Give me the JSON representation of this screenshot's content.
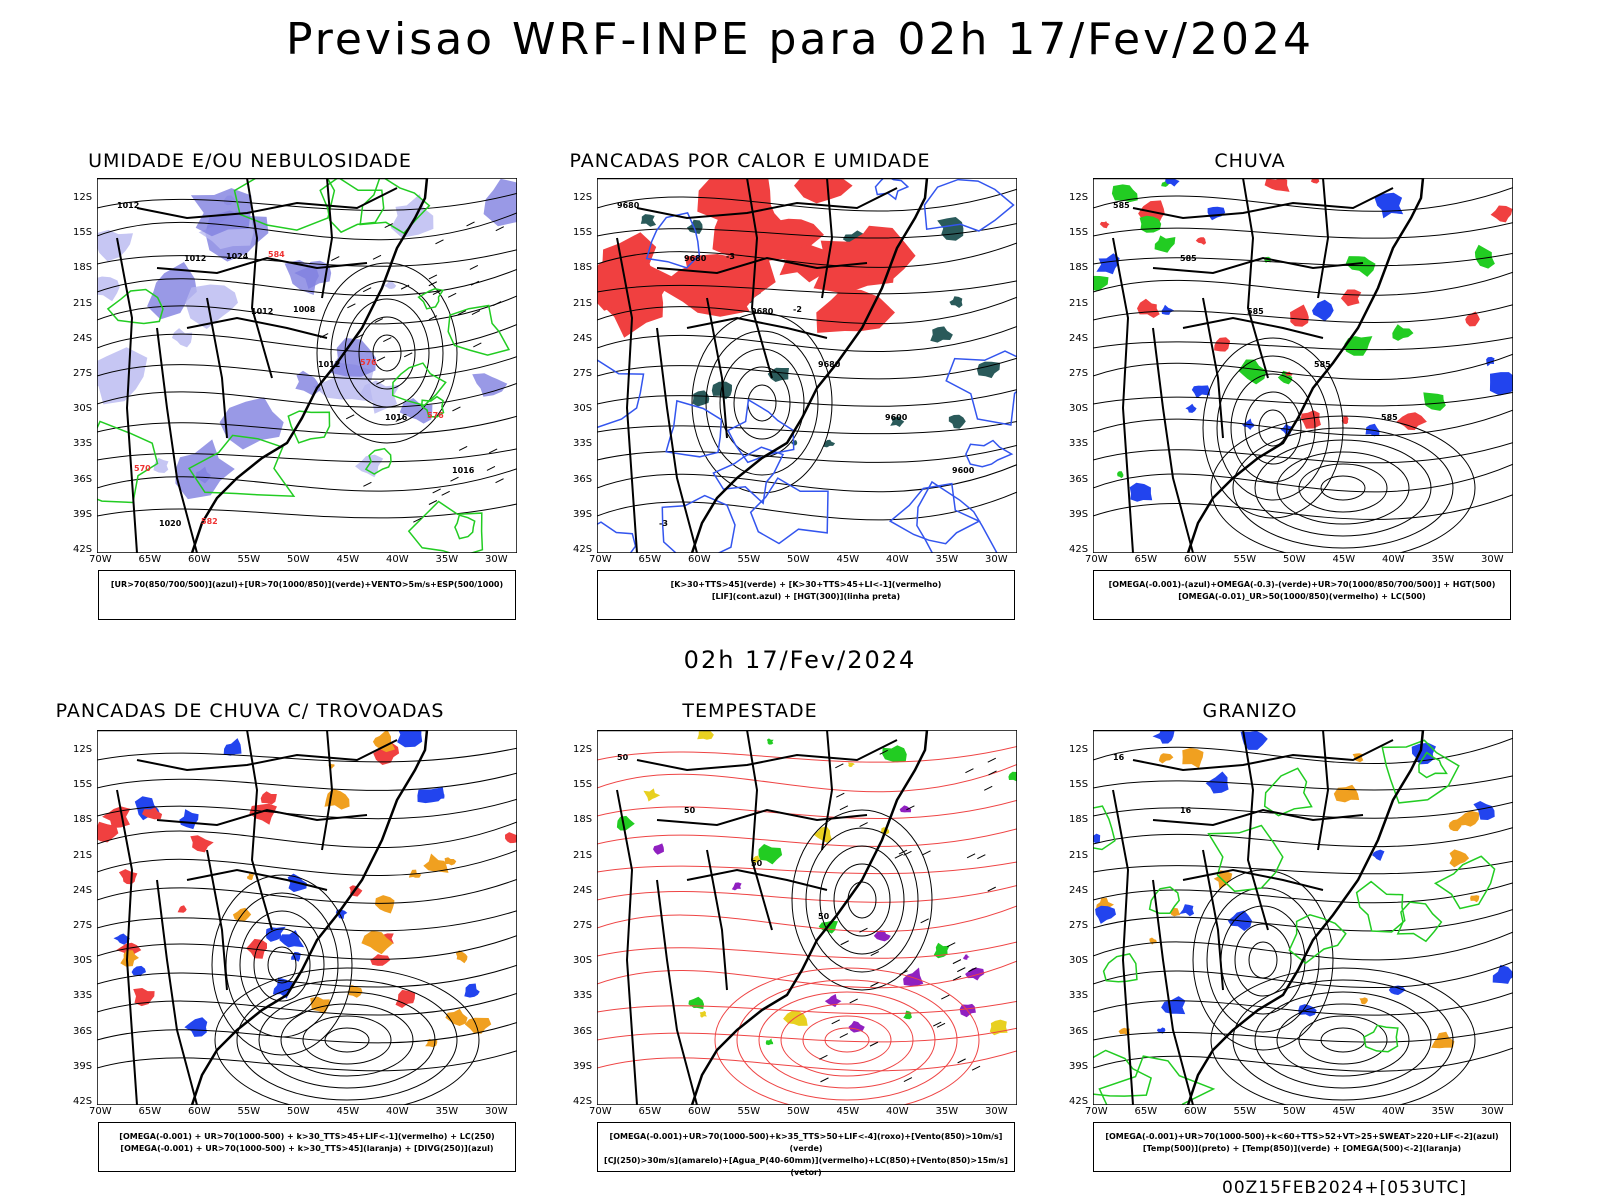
{
  "title": "Previsao WRF-INPE  para 02h 17/Fev/2024",
  "subtitle": "02h 17/Fev/2024",
  "footer": "00Z15FEB2024+[053UTC]",
  "axes": {
    "lat_labels": [
      "12S",
      "15S",
      "18S",
      "21S",
      "24S",
      "27S",
      "30S",
      "33S",
      "36S",
      "39S",
      "42S"
    ],
    "lon_labels": [
      "70W",
      "65W",
      "60W",
      "55W",
      "50W",
      "45W",
      "40W",
      "35W",
      "30W"
    ]
  },
  "panels": [
    {
      "title": "UMIDADE E/OU NEBULOSIDADE",
      "legend": [
        "[UR>70(850/700/500)](azul)+[UR>70(1000/850)](verde)+VENTO>5m/s+ESP(500/1000)"
      ],
      "contour_labels": [
        "1012",
        "1012",
        "1012",
        "1012",
        "1016",
        "1016",
        "1020",
        "1024",
        "1008",
        "576",
        "576",
        "570",
        "582",
        "584"
      ],
      "colors": {
        "shade1": "#b8b8f0",
        "shade2": "#8080e0",
        "contour": "#22cc22",
        "thickness": "#ee3333",
        "isobar": "#000000"
      }
    },
    {
      "title": "PANCADAS POR CALOR E UMIDADE",
      "legend": [
        "[K>30+TTS>45](verde) + [K>30+TTS>45+LI<-1](vermelho)",
        "[LIF](cont.azul) + [HGT(300)](linha preta)"
      ],
      "contour_labels": [
        "9680",
        "9680",
        "9680",
        "9680",
        "9600",
        "9600",
        "-3",
        "-3",
        "-2"
      ],
      "colors": {
        "shade1": "#f04040",
        "shade2": "#2a5a5a",
        "contour": "#3355ee",
        "isobar": "#000000"
      }
    },
    {
      "title": "CHUVA",
      "legend": [
        "[OMEGA(-0.001)-(azul)+OMEGA(-0.3)-(verde)+UR>70(1000/850/700/500)] + HGT(500)",
        "[OMEGA(-0.01)_UR>50(1000/850)(vermelho) + LC(500)"
      ],
      "contour_labels": [
        "585",
        "585",
        "585",
        "585",
        "585"
      ],
      "colors": {
        "shade1": "#f04040",
        "shade2": "#2244ee",
        "shade3": "#22cc22",
        "isobar": "#000000"
      }
    },
    {
      "title": "PANCADAS DE CHUVA C/ TROVOADAS",
      "legend": [
        "[OMEGA(-0.001) + UR>70(1000-500) + k>30_TTS>45+LIF<-1](vermelho) + LC(250)",
        "[OMEGA(-0.001) + UR>70(1000-500) + k>30_TTS>45](laranja) + [DIVG(250)](azul)"
      ],
      "contour_labels": [],
      "colors": {
        "shade1": "#f04040",
        "shade2": "#f0a020",
        "shade3": "#2244ee",
        "isobar": "#000000"
      }
    },
    {
      "title": "TEMPESTADE",
      "legend": [
        "[OMEGA(-0.001)+UR>70(1000-500)+k>35_TTS>50+LIF<-4](roxo)+[Vento(850)>10m/s](verde)",
        "[CJ(250)>30m/s](amarelo)+[Agua_P(40-60mm)](vermelho)+LC(850)+[Vento(850)>15m/s](vetor)"
      ],
      "contour_labels": [
        "50",
        "50",
        "50",
        "50"
      ],
      "colors": {
        "shade1": "#e8d020",
        "shade2": "#9020c0",
        "shade3": "#22cc22",
        "contour": "#ee4444",
        "isobar": "#000000"
      }
    },
    {
      "title": "GRANIZO",
      "legend": [
        "[OMEGA(-0.001)+UR>70(1000-500)+k<60+TTS>52+VT>25+SWEAT>220+LIF<-2](azul)",
        "[Temp(500)](preto) + [Temp(850)](verde) + [OMEGA(500)<-2](laranja)"
      ],
      "contour_labels": [
        "16",
        "16"
      ],
      "colors": {
        "shade1": "#f0a020",
        "shade2": "#2244ee",
        "contour": "#22cc22",
        "isobar": "#000000"
      }
    }
  ]
}
